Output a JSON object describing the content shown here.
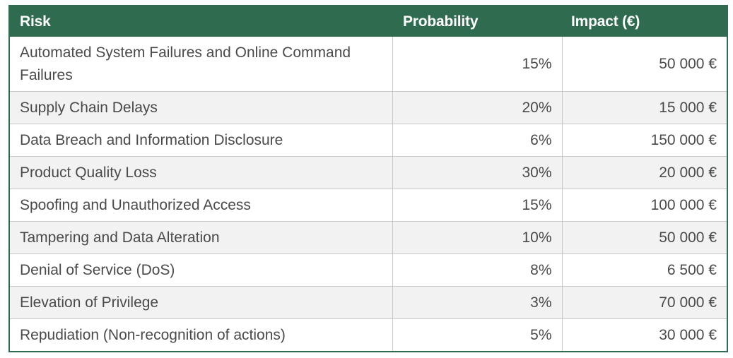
{
  "table": {
    "headers": {
      "risk": "Risk",
      "probability": "Probability",
      "impact": "Impact (€)"
    },
    "rows": [
      {
        "risk": "Automated System Failures and Online Command Failures",
        "probability": "15%",
        "impact": "50 000 €"
      },
      {
        "risk": "Supply Chain Delays",
        "probability": "20%",
        "impact": "15 000 €"
      },
      {
        "risk": "Data Breach and Information Disclosure",
        "probability": "6%",
        "impact": "150 000 €"
      },
      {
        "risk": "Product Quality Loss",
        "probability": "30%",
        "impact": "20 000 €"
      },
      {
        "risk": "Spoofing and Unauthorized Access",
        "probability": "15%",
        "impact": "100 000 €"
      },
      {
        "risk": "Tampering and Data Alteration",
        "probability": "10%",
        "impact": "50 000 €"
      },
      {
        "risk": "Denial of Service (DoS)",
        "probability": "8%",
        "impact": "6 500 €"
      },
      {
        "risk": "Elevation of Privilege",
        "probability": "3%",
        "impact": "70 000 €"
      },
      {
        "risk": "Repudiation (Non-recognition of actions)",
        "probability": "5%",
        "impact": "30 000 €"
      }
    ],
    "colors": {
      "header_bg": "#2f6b4f",
      "header_text": "#ffffff",
      "alt_row_bg": "#f2f2f2"
    }
  }
}
